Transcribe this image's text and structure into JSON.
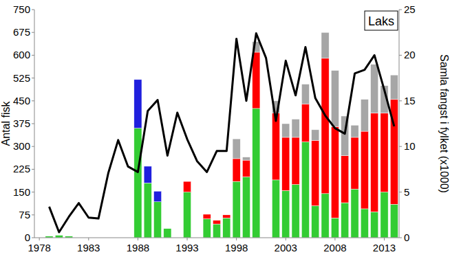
{
  "chart_data": {
    "type": "bar",
    "stacked": true,
    "title": "Laks",
    "y_label": "Antal fisk",
    "y2_label": "Samla fangst i fylket (x1000)",
    "categories": [
      "1978",
      null,
      null,
      null,
      null,
      "1983",
      null,
      null,
      null,
      null,
      "1988",
      null,
      null,
      null,
      null,
      "1993",
      null,
      null,
      null,
      null,
      "1998",
      null,
      null,
      null,
      null,
      "2003",
      null,
      null,
      null,
      null,
      "2008",
      null,
      null,
      null,
      null,
      "2013",
      null
    ],
    "series": [
      {
        "color": "#33cc33",
        "values": [
          0,
          5,
          8,
          5,
          0,
          0,
          0,
          0,
          0,
          0,
          360,
          180,
          118,
          30,
          0,
          150,
          0,
          62,
          45,
          65,
          185,
          200,
          425,
          0,
          190,
          155,
          175,
          315,
          105,
          145,
          65,
          115,
          160,
          95,
          85,
          150,
          110
        ]
      },
      {
        "color": "#ff0000",
        "values": [
          0,
          0,
          0,
          0,
          0,
          0,
          0,
          0,
          0,
          0,
          0,
          0,
          0,
          0,
          0,
          35,
          0,
          15,
          12,
          10,
          75,
          55,
          185,
          0,
          220,
          175,
          155,
          125,
          215,
          445,
          300,
          155,
          170,
          255,
          325,
          260,
          345
        ]
      },
      {
        "color": "#a6a6a6",
        "values": [
          0,
          0,
          0,
          0,
          0,
          0,
          0,
          0,
          0,
          0,
          0,
          0,
          0,
          0,
          0,
          0,
          0,
          0,
          0,
          0,
          65,
          10,
          35,
          0,
          40,
          45,
          60,
          65,
          35,
          85,
          185,
          130,
          40,
          105,
          160,
          90,
          80
        ]
      },
      {
        "color": "#1f1fdd",
        "values": [
          0,
          0,
          0,
          0,
          0,
          0,
          0,
          0,
          0,
          0,
          160,
          55,
          35,
          0,
          0,
          0,
          0,
          0,
          0,
          0,
          0,
          0,
          0,
          0,
          0,
          0,
          0,
          0,
          0,
          0,
          0,
          0,
          0,
          0,
          0,
          0,
          0
        ]
      },
      {
        "type": "line",
        "axis": "y2",
        "color": "#000000",
        "values": [
          null,
          3.4,
          0.6,
          2.3,
          3.8,
          2.2,
          2.1,
          7.1,
          10.7,
          7.8,
          7.2,
          13.9,
          15.1,
          9.0,
          13.7,
          10.8,
          8.4,
          7.2,
          9.5,
          9.5,
          21.8,
          15.0,
          22.4,
          19.7,
          12.8,
          19.4,
          15.6,
          20.9,
          15.3,
          13.4,
          12.0,
          11.4,
          18.0,
          18.4,
          20.0,
          16.2,
          12.2
        ]
      }
    ],
    "ylim": [
      0,
      750
    ],
    "yticks": [
      0,
      75,
      150,
      225,
      300,
      375,
      450,
      525,
      600,
      675,
      750
    ],
    "y2lim": [
      0,
      25
    ],
    "y2ticks": [
      0,
      5,
      10,
      15,
      20,
      25
    ]
  }
}
